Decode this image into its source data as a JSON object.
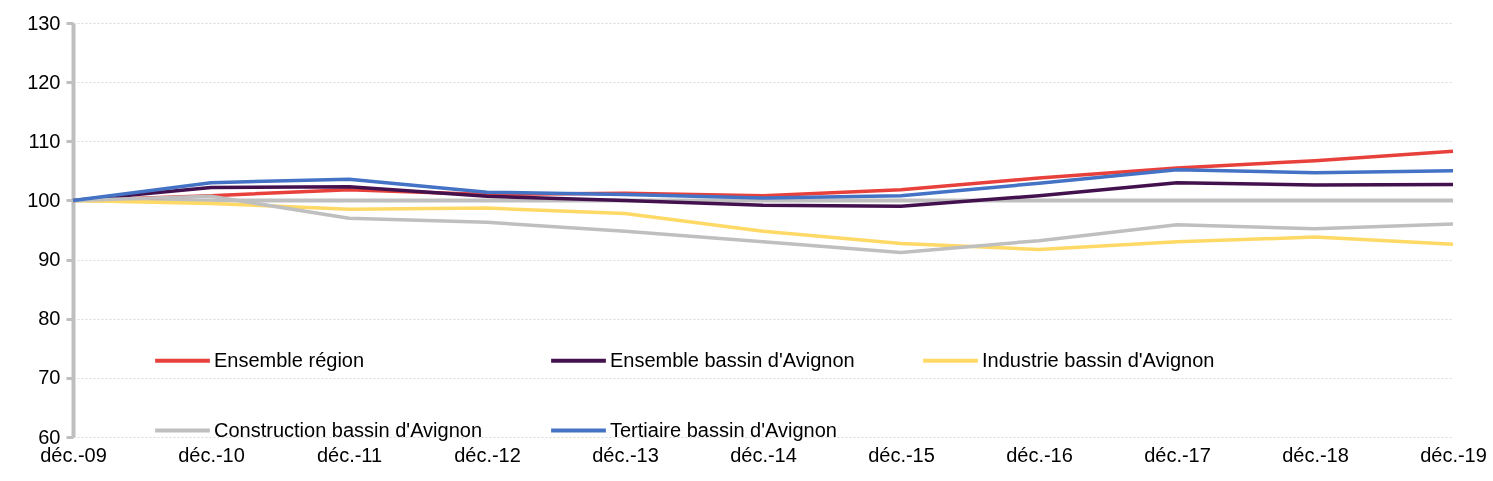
{
  "chart_data": {
    "type": "line",
    "categories": [
      "déc.-09",
      "déc.-10",
      "déc.-11",
      "déc.-12",
      "déc.-13",
      "déc.-14",
      "déc.-15",
      "déc.-16",
      "déc.-17",
      "déc.-18",
      "déc.-19"
    ],
    "series": [
      {
        "name": "Ensemble région",
        "color": "#e8413c",
        "values": [
          100,
          100.8,
          101.8,
          101,
          101.2,
          100.8,
          101.8,
          103.8,
          105.5,
          106.7,
          108.3
        ]
      },
      {
        "name": "Ensemble bassin d'Avignon",
        "color": "#44114f",
        "values": [
          100,
          102.2,
          102.3,
          100.7,
          100,
          99.2,
          99,
          100.8,
          103,
          102.6,
          102.7
        ]
      },
      {
        "name": "Industrie bassin d'Avignon",
        "color": "#ffd966",
        "values": [
          100,
          99.5,
          98.5,
          98.7,
          97.8,
          94.8,
          92.7,
          91.7,
          93,
          93.8,
          92.6
        ]
      },
      {
        "name": "Construction bassin d'Avignon",
        "color": "#bfbfbf",
        "values": [
          100,
          100.7,
          97,
          96.3,
          94.8,
          93,
          91.2,
          93.2,
          95.9,
          95.2,
          96
        ]
      },
      {
        "name": "Tertiaire bassin d'Avignon",
        "color": "#4472c4",
        "values": [
          100,
          103,
          103.6,
          101.4,
          101,
          100.4,
          100.8,
          102.9,
          105.2,
          104.7,
          105
        ]
      }
    ],
    "ylim": [
      60,
      130
    ],
    "yticks": [
      60,
      70,
      80,
      90,
      100,
      110,
      120,
      130
    ],
    "grid": "y",
    "legend": "bottom left",
    "ref_lines": [
      {
        "axis": "y",
        "value": 100,
        "color": "#bfbfbf"
      }
    ]
  }
}
